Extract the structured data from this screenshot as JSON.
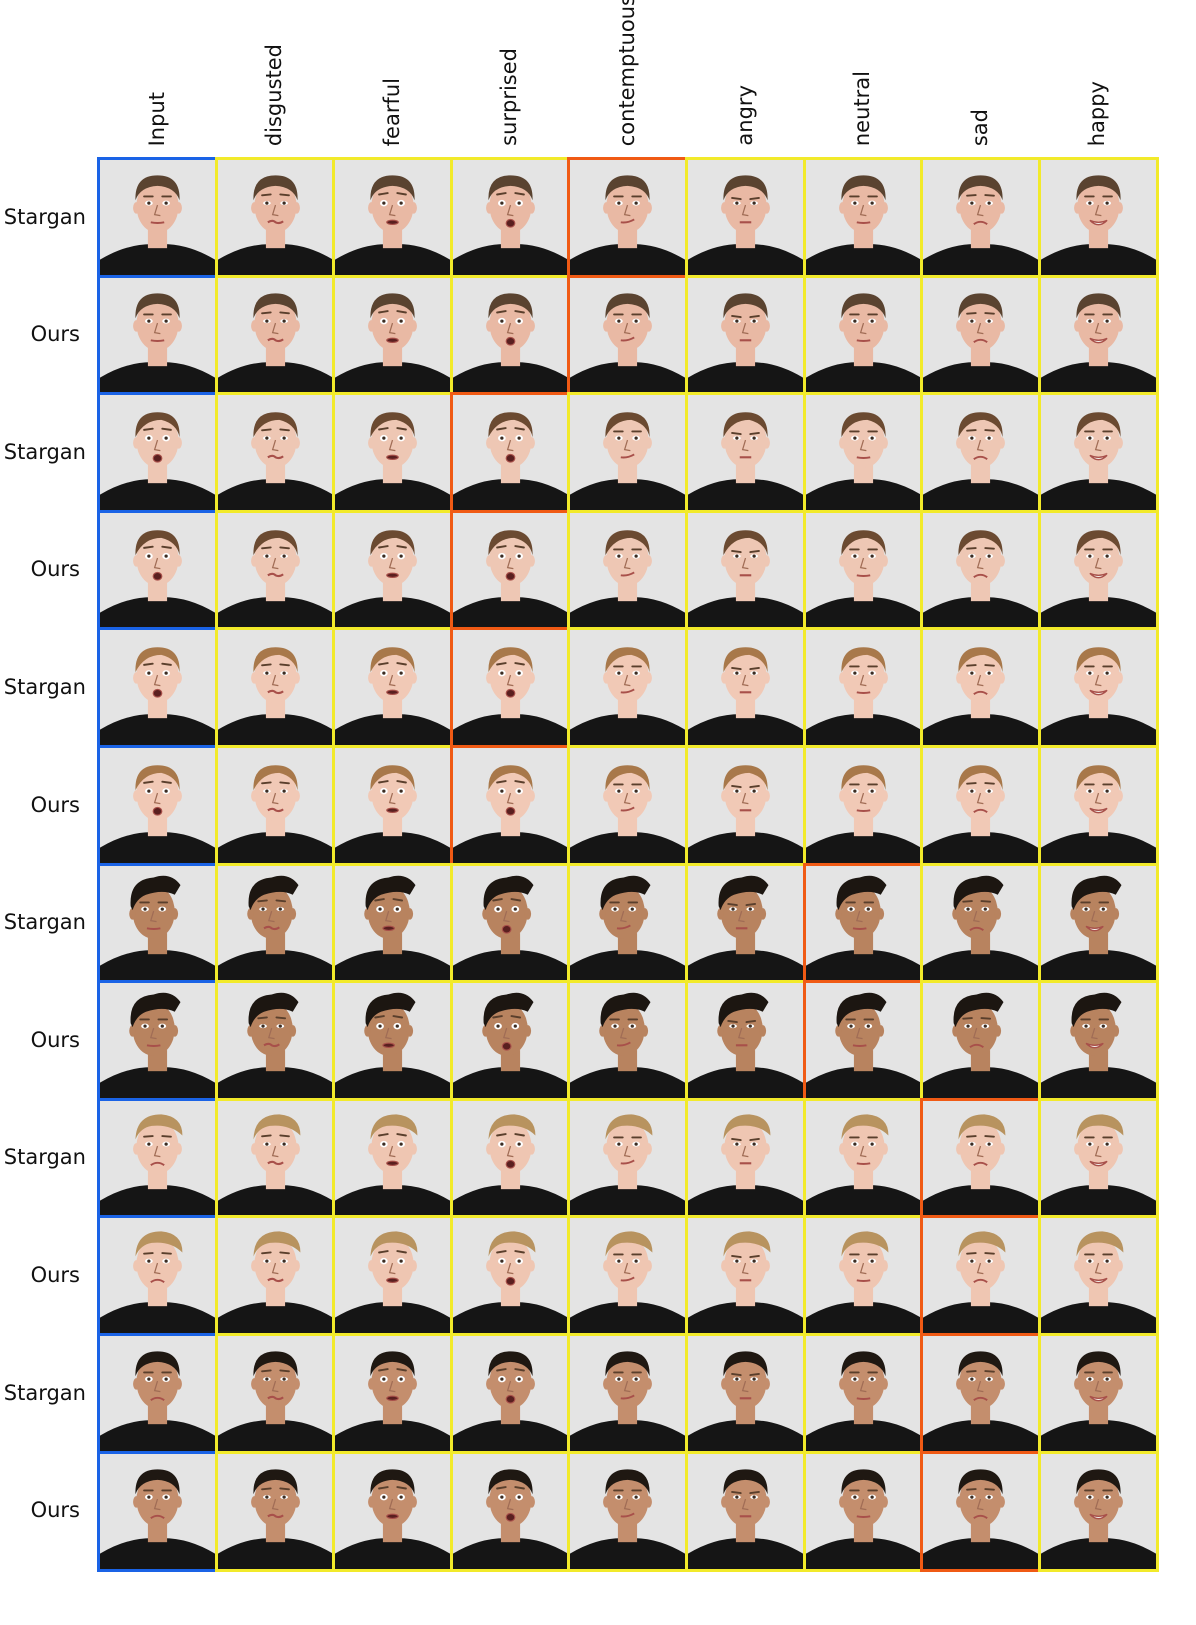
{
  "columns": [
    "Input",
    "disgusted",
    "fearful",
    "surprised",
    "contemptuous",
    "angry",
    "neutral",
    "sad",
    "happy"
  ],
  "rows": [
    {
      "method": "Stargan",
      "subject": 0,
      "target_column": 4
    },
    {
      "method": "Ours",
      "subject": 0,
      "target_column": 4
    },
    {
      "method": "Stargan",
      "subject": 1,
      "target_column": 3
    },
    {
      "method": "Ours",
      "subject": 1,
      "target_column": 3
    },
    {
      "method": "Stargan",
      "subject": 2,
      "target_column": 3
    },
    {
      "method": "Ours",
      "subject": 2,
      "target_column": 3
    },
    {
      "method": "Stargan",
      "subject": 3,
      "target_column": 6
    },
    {
      "method": "Ours",
      "subject": 3,
      "target_column": 6
    },
    {
      "method": "Stargan",
      "subject": 4,
      "target_column": 7
    },
    {
      "method": "Ours",
      "subject": 4,
      "target_column": 7
    },
    {
      "method": "Stargan",
      "subject": 5,
      "target_column": 7
    },
    {
      "method": "Ours",
      "subject": 5,
      "target_column": 7
    }
  ],
  "subjects": [
    {
      "skin": "#e9b9a4",
      "hair": "#5a4330",
      "hair_style": "short"
    },
    {
      "skin": "#eec7b4",
      "hair": "#6b4a31",
      "hair_style": "tied"
    },
    {
      "skin": "#f1c9b6",
      "hair": "#a8784a",
      "hair_style": "tied"
    },
    {
      "skin": "#b8835f",
      "hair": "#1c1611",
      "hair_style": "spiky"
    },
    {
      "skin": "#efc6b2",
      "hair": "#b8935f",
      "hair_style": "swept"
    },
    {
      "skin": "#c48e6d",
      "hair": "#1f1812",
      "hair_style": "short"
    }
  ],
  "colors": {
    "input_frame": "#1a63e6",
    "generated_frame": "#f2ea2a",
    "target_frame": "#f05a14",
    "background": "#e4e4e4",
    "shirt": "#151515"
  }
}
